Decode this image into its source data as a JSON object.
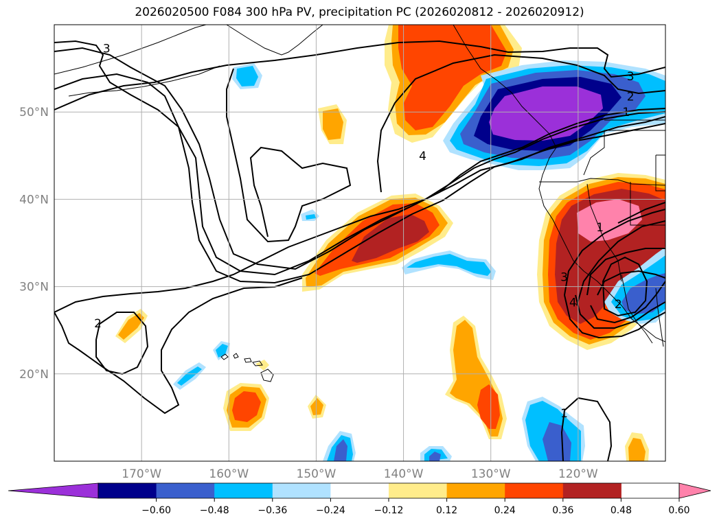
{
  "title": "2026020500 F084 300 hPa PV, precipitation PC (2026020812 - 2026020912)",
  "map": {
    "lon_range": [
      -180,
      -110
    ],
    "lat_range": [
      10,
      60
    ],
    "lat_ticks": [
      {
        "value": 20,
        "label": "20°N"
      },
      {
        "value": 30,
        "label": "30°N"
      },
      {
        "value": 40,
        "label": "40°N"
      },
      {
        "value": 50,
        "label": "50°N"
      }
    ],
    "lon_ticks": [
      {
        "value": -170,
        "label": "170°W"
      },
      {
        "value": -160,
        "label": "160°W"
      },
      {
        "value": -150,
        "label": "150°W"
      },
      {
        "value": -140,
        "label": "140°W"
      },
      {
        "value": -130,
        "label": "130°W"
      },
      {
        "value": -120,
        "label": "120°W"
      }
    ],
    "contour_labels": [
      {
        "text": "3",
        "lon": -174,
        "lat": 57.3
      },
      {
        "text": "3",
        "lon": -114,
        "lat": 54.1
      },
      {
        "text": "2",
        "lon": -114,
        "lat": 51.8
      },
      {
        "text": "1",
        "lon": -114.5,
        "lat": 50.0
      },
      {
        "text": "4",
        "lon": -137.8,
        "lat": 45.0
      },
      {
        "text": "2",
        "lon": -175,
        "lat": 25.8
      },
      {
        "text": "1",
        "lon": -117.5,
        "lat": 36.8
      },
      {
        "text": "3",
        "lon": -121.6,
        "lat": 31.1
      },
      {
        "text": "4",
        "lon": -120.6,
        "lat": 28.2
      },
      {
        "text": "2",
        "lon": -115.4,
        "lat": 28.0
      },
      {
        "text": "1",
        "lon": -121.6,
        "lat": 15.5
      }
    ]
  },
  "colorbar": {
    "colors": [
      "#9b30d9",
      "#00008b",
      "#3a5fcd",
      "#00bfff",
      "#b0e2ff",
      "#ffffff",
      "#ffec8b",
      "#ffa500",
      "#ff4500",
      "#b22222",
      "#ff82ab"
    ],
    "levels": [
      "−0.60",
      "−0.48",
      "−0.36",
      "−0.24",
      "−0.12",
      "0.12",
      "0.24",
      "0.36",
      "0.48",
      "0.60"
    ]
  }
}
